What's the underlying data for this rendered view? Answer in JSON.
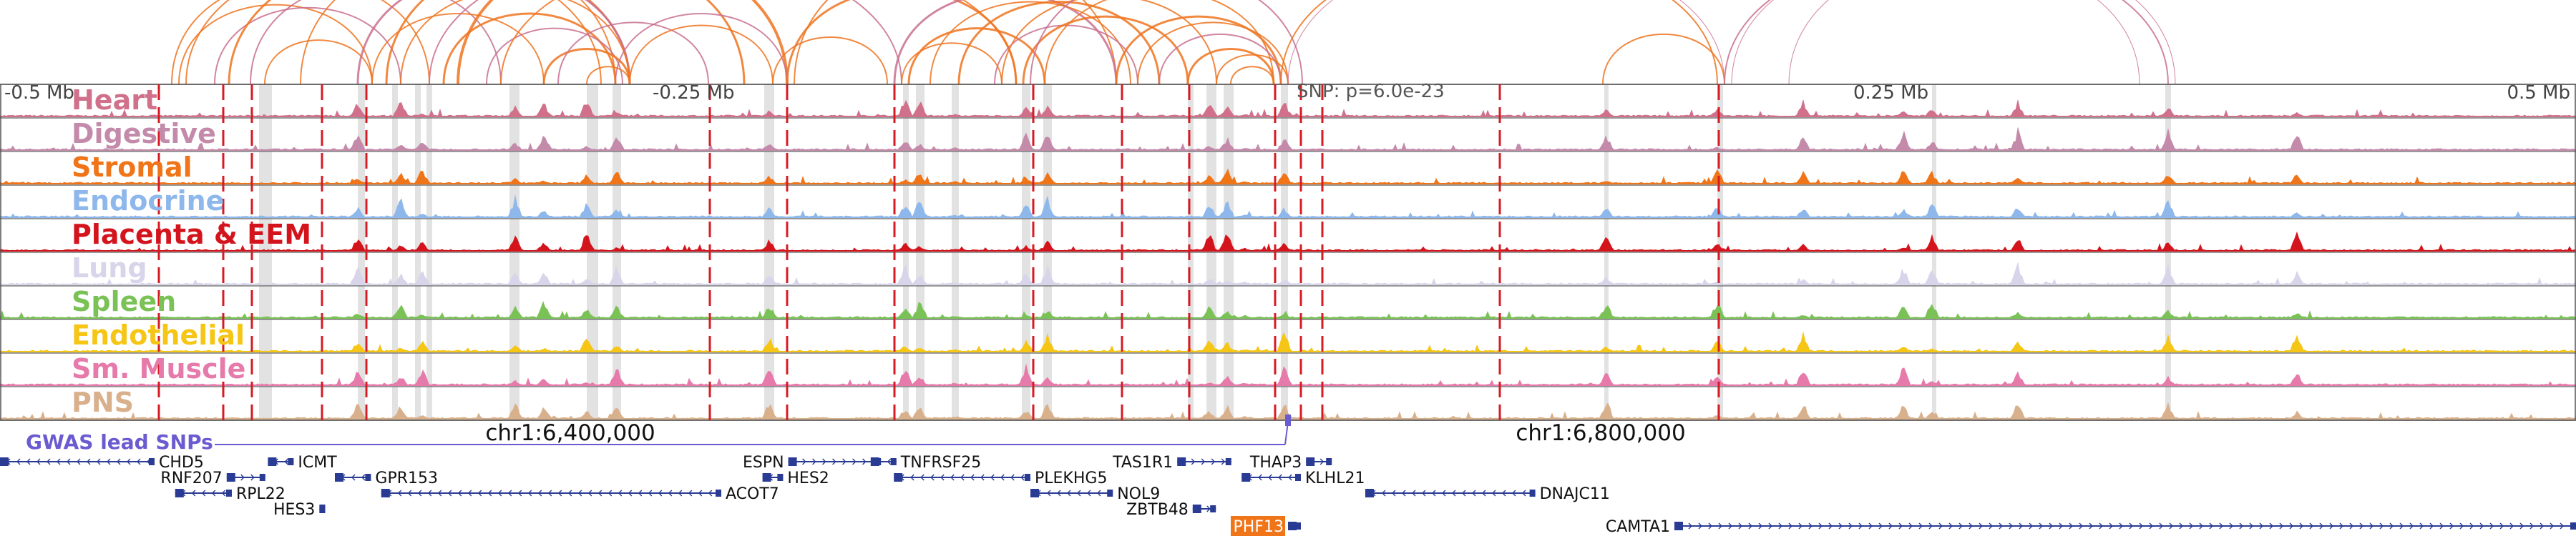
{
  "region": {
    "start_offset": -0.5,
    "end_offset": 0.5,
    "axis_labels": [
      "-0.5 Mb",
      "-0.25 Mb",
      "0.25 Mb",
      "0.5 Mb"
    ],
    "axis_offsets": [
      -0.5,
      -0.25,
      0.25,
      0.5
    ],
    "lead_snp_offset": 0.0,
    "lead_snp_label": "SNP: p=6.0e-23",
    "coord_labels": [
      "chr1:6,400,000",
      "chr1:6,800,000"
    ],
    "coord_offsets": [
      -0.2,
      0.2
    ]
  },
  "tracks": [
    {
      "name": "Heart",
      "color": "#d0708a"
    },
    {
      "name": "Digestive",
      "color": "#c48aaa"
    },
    {
      "name": "Stromal",
      "color": "#f07418"
    },
    {
      "name": "Endocrine",
      "color": "#8eb8ec"
    },
    {
      "name": "Placenta & EEM",
      "color": "#d4141c"
    },
    {
      "name": "Lung",
      "color": "#d8d4ea"
    },
    {
      "name": "Spleen",
      "color": "#7ac256"
    },
    {
      "name": "Endothelial",
      "color": "#f5c616"
    },
    {
      "name": "Sm. Muscle",
      "color": "#e67aaa"
    },
    {
      "name": "PNS",
      "color": "#d9b08c"
    }
  ],
  "gwas_label": "GWAS lead SNPs",
  "genes": [
    {
      "name": "CHD5",
      "start": -0.5,
      "end": -0.44,
      "strand": "-",
      "row": 0
    },
    {
      "name": "ICMT",
      "start": -0.396,
      "end": -0.386,
      "strand": "-",
      "row": 0
    },
    {
      "name": "RNF207",
      "start": -0.412,
      "end": -0.397,
      "strand": "+",
      "row": 1
    },
    {
      "name": "GPR153",
      "start": -0.37,
      "end": -0.356,
      "strand": "-",
      "row": 1
    },
    {
      "name": "RPL22",
      "start": -0.432,
      "end": -0.41,
      "strand": "-",
      "row": 2
    },
    {
      "name": "HES3",
      "start": -0.376,
      "end": -0.374,
      "strand": "+",
      "row": 3
    },
    {
      "name": "ACOT7",
      "start": -0.352,
      "end": -0.22,
      "strand": "-",
      "row": 2
    },
    {
      "name": "ESPN",
      "start": -0.194,
      "end": -0.158,
      "strand": "+",
      "row": 0
    },
    {
      "name": "HES2",
      "start": -0.204,
      "end": -0.196,
      "strand": "-",
      "row": 1
    },
    {
      "name": "TNFRSF25",
      "start": -0.162,
      "end": -0.152,
      "strand": "-",
      "row": 0
    },
    {
      "name": "PLEKHG5",
      "start": -0.153,
      "end": -0.1,
      "strand": "-",
      "row": 1
    },
    {
      "name": "TAS1R1",
      "start": -0.043,
      "end": -0.022,
      "strand": "+",
      "row": 0
    },
    {
      "name": "NOL9",
      "start": -0.1,
      "end": -0.068,
      "strand": "-",
      "row": 2
    },
    {
      "name": "ZBTB48",
      "start": -0.037,
      "end": -0.028,
      "strand": "+",
      "row": 3
    },
    {
      "name": "THAP3",
      "start": 0.007,
      "end": 0.017,
      "strand": "+",
      "row": 0
    },
    {
      "name": "KLHL21",
      "start": -0.018,
      "end": 0.005,
      "strand": "-",
      "row": 1
    },
    {
      "name": "PHF13",
      "start": 0.0,
      "end": 0.005,
      "strand": "+",
      "row": 4,
      "highlight": true
    },
    {
      "name": "DNAJC11",
      "start": 0.03,
      "end": 0.096,
      "strand": "-",
      "row": 2
    },
    {
      "name": "CAMTA1",
      "start": 0.15,
      "end": 0.5,
      "strand": "+",
      "row": 4
    }
  ],
  "colors": {
    "arc_primary": "#ee7420",
    "arc_secondary": "#c9708f",
    "dashed_line": "#d61b24",
    "highlight_band": "#d8d8d8",
    "gene": "#2a3b94",
    "gwas": "#6b5bd0",
    "phf13_bg": "#f07418"
  }
}
